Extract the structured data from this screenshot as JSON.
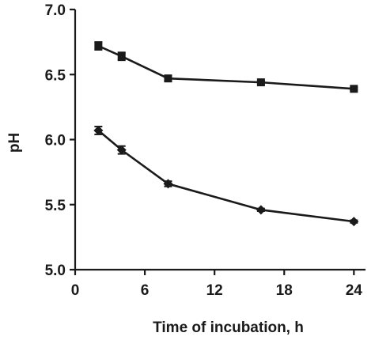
{
  "chart_data": {
    "type": "line",
    "title": "",
    "xlabel": "Time of incubation, h",
    "ylabel": "pH",
    "xlim": [
      0,
      25
    ],
    "ylim": [
      5.0,
      7.0
    ],
    "x_ticks": [
      0,
      6,
      12,
      18,
      24
    ],
    "x_tick_labels": [
      "0",
      "6",
      "12",
      "18",
      "24"
    ],
    "y_ticks": [
      5.0,
      5.5,
      6.0,
      6.5,
      7.0
    ],
    "y_tick_labels": [
      "5.0",
      "5.5",
      "6.0",
      "6.5",
      "7.0"
    ],
    "grid": false,
    "legend": "none",
    "series": [
      {
        "marker": "square",
        "color": "#1a1a1a",
        "x": [
          2,
          4,
          8,
          16,
          24
        ],
        "y": [
          6.72,
          6.64,
          6.47,
          6.44,
          6.39
        ],
        "error": [
          0.03,
          0.03,
          0.02,
          0.01,
          0.01
        ]
      },
      {
        "marker": "diamond",
        "color": "#1a1a1a",
        "x": [
          2,
          4,
          8,
          16,
          24
        ],
        "y": [
          6.07,
          5.92,
          5.66,
          5.46,
          5.37
        ],
        "error": [
          0.03,
          0.03,
          0.02,
          0.01,
          0.01
        ]
      }
    ]
  }
}
